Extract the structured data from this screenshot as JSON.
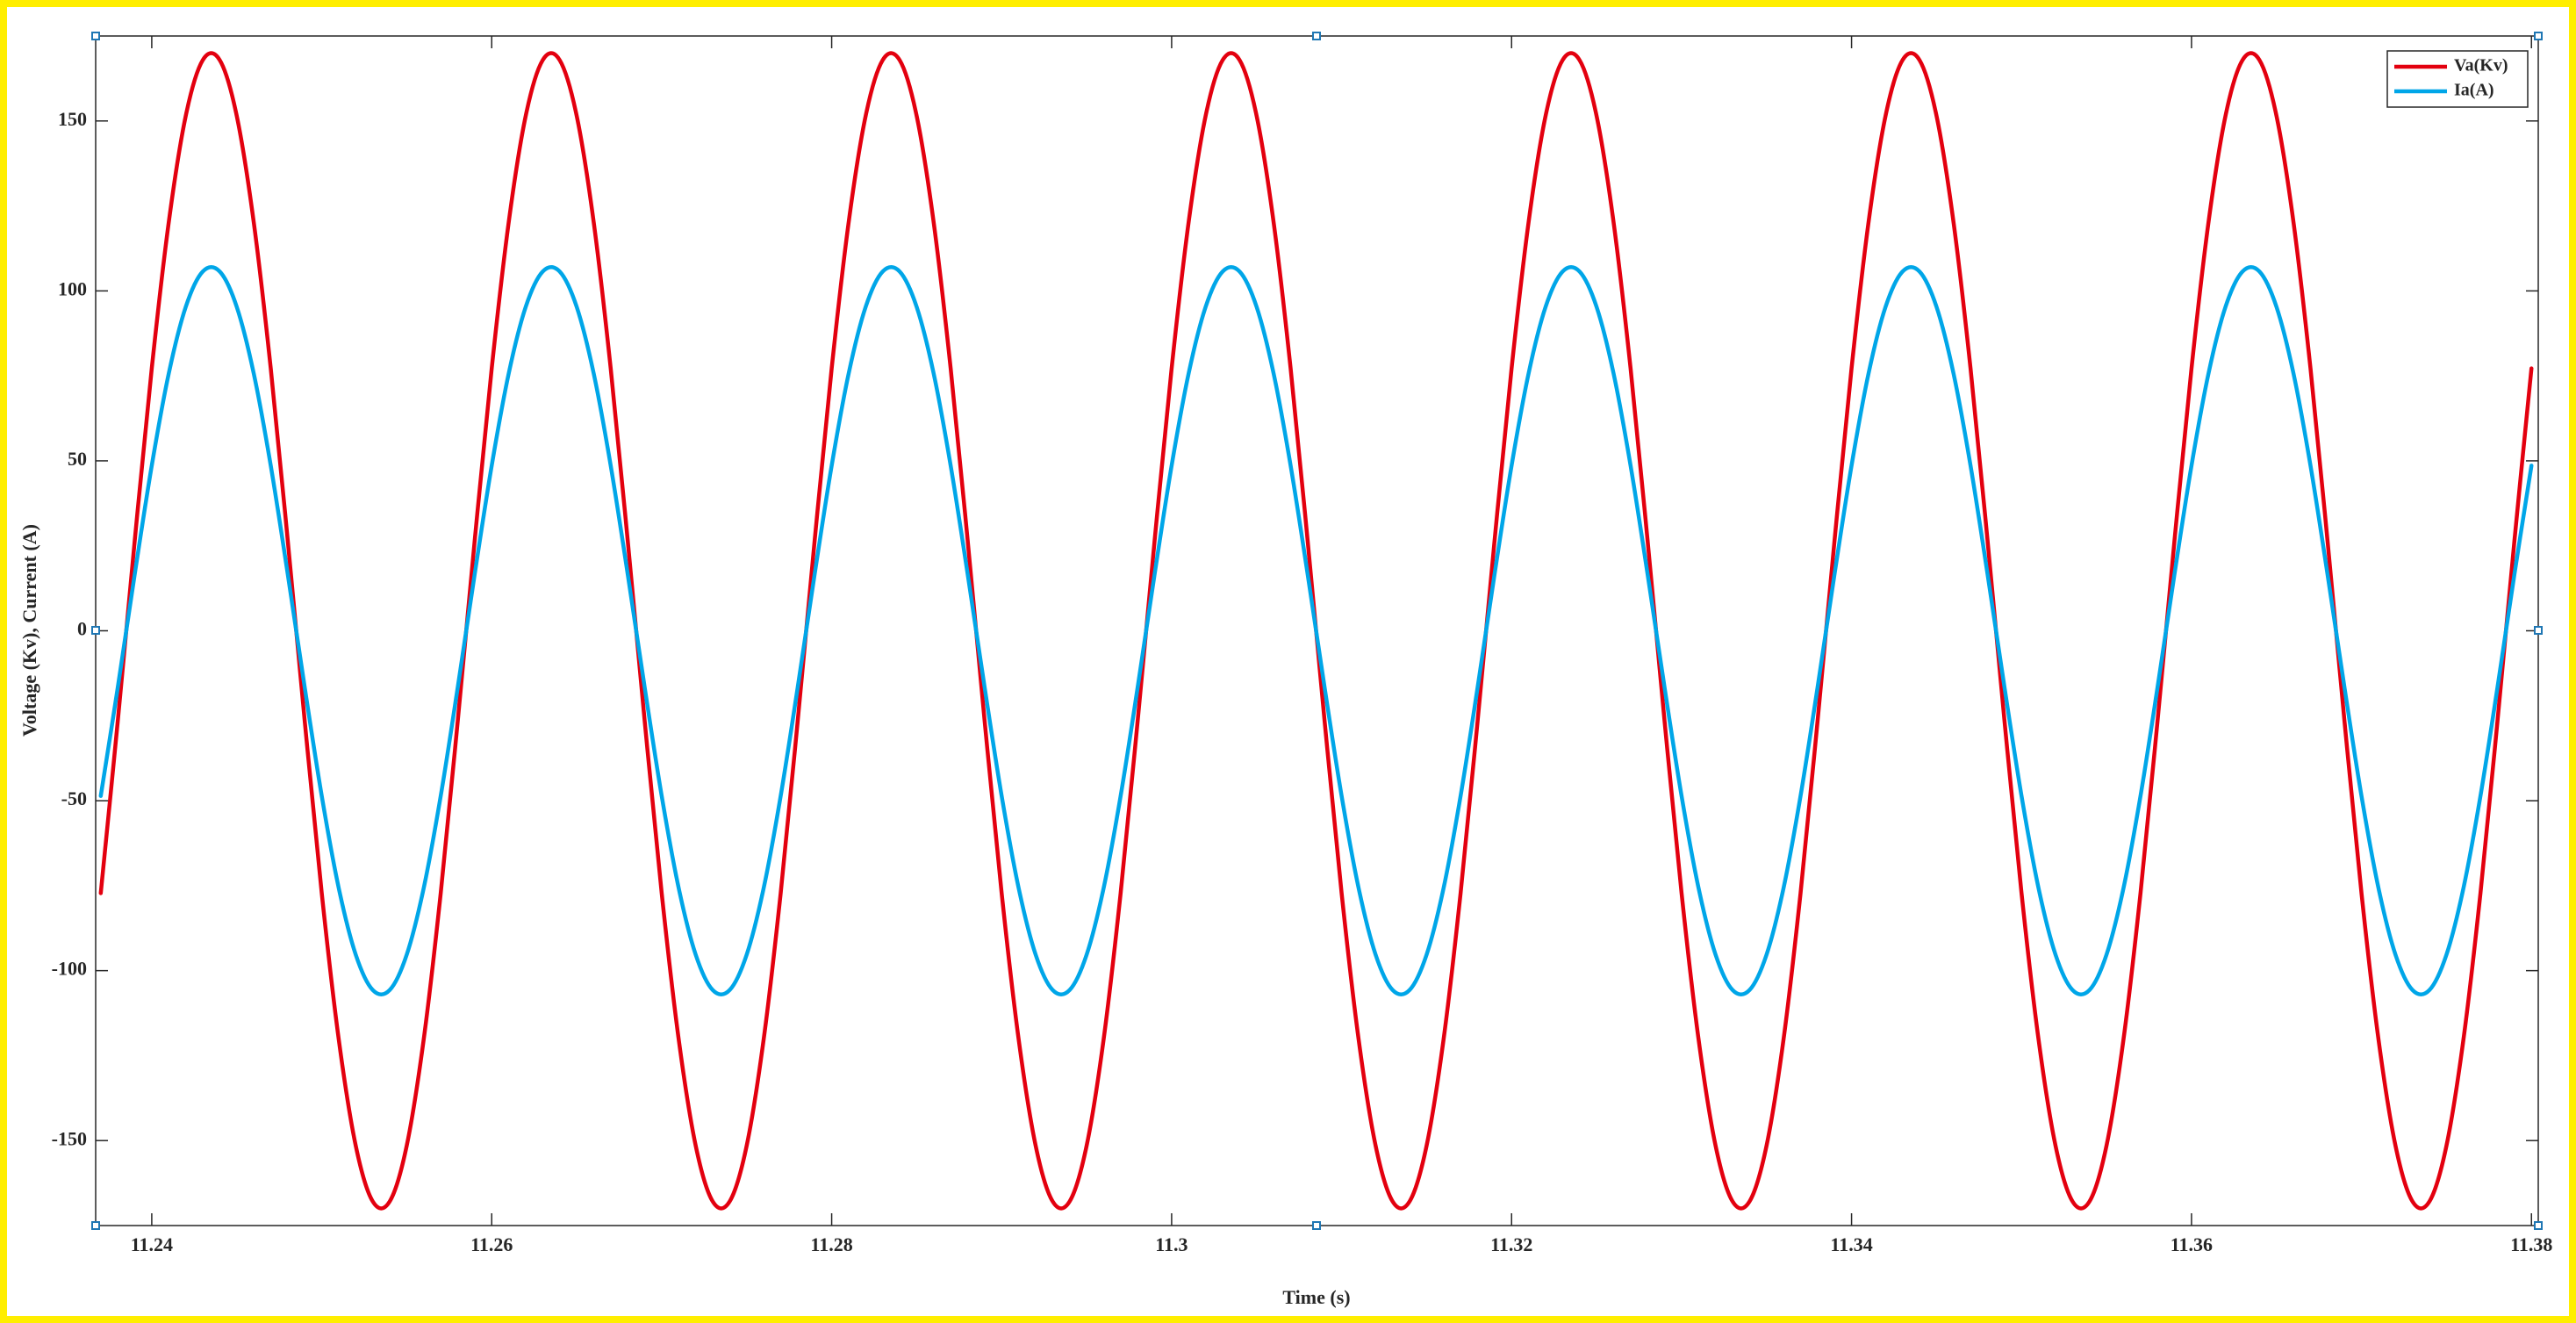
{
  "chart_data": {
    "type": "line",
    "xlabel": "Time (s)",
    "ylabel": "Voltage (Kv), Current (A)",
    "xlim": [
      11.2367,
      11.3804
    ],
    "ylim": [
      -175,
      175
    ],
    "xticks": [
      11.24,
      11.26,
      11.28,
      11.3,
      11.32,
      11.34,
      11.36,
      11.38
    ],
    "yticks": [
      -150,
      -100,
      -50,
      0,
      50,
      100,
      150
    ],
    "legend": "upper right",
    "x": [
      11.237,
      11.238,
      11.239,
      11.24,
      11.241,
      11.242,
      11.243,
      11.244,
      11.245,
      11.246,
      11.247,
      11.248,
      11.249,
      11.25,
      11.251,
      11.252,
      11.253,
      11.254,
      11.255,
      11.256,
      11.257,
      11.258,
      11.259,
      11.26,
      11.261,
      11.262,
      11.263,
      11.264,
      11.265,
      11.266,
      11.267,
      11.268,
      11.269,
      11.27,
      11.271,
      11.272,
      11.273,
      11.274,
      11.275,
      11.276,
      11.277,
      11.278,
      11.279,
      11.28,
      11.281,
      11.282,
      11.283,
      11.284,
      11.285,
      11.286,
      11.287,
      11.288,
      11.289,
      11.29,
      11.291,
      11.292,
      11.293,
      11.294,
      11.295,
      11.296,
      11.297,
      11.298,
      11.299,
      11.3,
      11.301,
      11.302,
      11.303,
      11.304,
      11.305,
      11.306,
      11.307,
      11.308,
      11.309,
      11.31,
      11.311,
      11.312,
      11.313,
      11.314,
      11.315,
      11.316,
      11.317,
      11.318,
      11.319,
      11.32,
      11.321,
      11.322,
      11.323,
      11.324,
      11.325,
      11.326,
      11.327,
      11.328,
      11.329,
      11.33,
      11.331,
      11.332,
      11.333,
      11.334,
      11.335,
      11.336,
      11.337,
      11.338,
      11.339,
      11.34,
      11.341,
      11.342,
      11.343,
      11.344,
      11.345,
      11.346,
      11.347,
      11.348,
      11.349,
      11.35,
      11.351,
      11.352,
      11.353,
      11.354,
      11.355,
      11.356,
      11.357,
      11.358,
      11.359,
      11.36,
      11.361,
      11.362,
      11.363,
      11.364,
      11.365,
      11.366,
      11.367,
      11.368,
      11.369,
      11.37,
      11.371,
      11.372,
      11.373,
      11.374,
      11.375,
      11.376,
      11.377,
      11.378,
      11.379,
      11.38
    ],
    "series": [
      {
        "name": "Va(Kv)",
        "color": "#e3000f",
        "values": [
          -77.2,
          -26.6,
          26.6,
          77.2,
          120.2,
          151.5,
          167.9,
          167.9,
          151.5,
          120.2,
          77.2,
          26.6,
          -26.6,
          -77.2,
          -120.2,
          -151.5,
          -167.9,
          -167.9,
          -151.5,
          -120.2,
          -77.2,
          -26.6,
          26.6,
          77.2,
          120.2,
          151.5,
          167.9,
          167.9,
          151.5,
          120.2,
          77.2,
          26.6,
          -26.6,
          -77.2,
          -120.2,
          -151.5,
          -167.9,
          -167.9,
          -151.5,
          -120.2,
          -77.2,
          -26.6,
          26.6,
          77.2,
          120.2,
          151.5,
          167.9,
          167.9,
          151.5,
          120.2,
          77.2,
          26.6,
          -26.6,
          -77.2,
          -120.2,
          -151.5,
          -167.9,
          -167.9,
          -151.5,
          -120.2,
          -77.2,
          -26.6,
          26.6,
          77.2,
          120.2,
          151.5,
          167.9,
          167.9,
          151.5,
          120.2,
          77.2,
          26.6,
          -26.6,
          -77.2,
          -120.2,
          -151.5,
          -167.9,
          -167.9,
          -151.5,
          -120.2,
          -77.2,
          -26.6,
          26.6,
          77.2,
          120.2,
          151.5,
          167.9,
          167.9,
          151.5,
          120.2,
          77.2,
          26.6,
          -26.6,
          -77.2,
          -120.2,
          -151.5,
          -167.9,
          -167.9,
          -151.5,
          -120.2,
          -77.2,
          -26.6,
          26.6,
          77.2,
          120.2,
          151.5,
          167.9,
          167.9,
          151.5,
          120.2,
          77.2,
          26.6,
          -26.6,
          -77.2,
          -120.2,
          -151.5,
          -167.9,
          -167.9,
          -151.5,
          -120.2,
          -77.2,
          -26.6,
          26.6,
          77.2,
          120.2,
          151.5,
          167.9,
          167.9,
          151.5,
          120.2,
          77.2,
          26.6,
          -26.6,
          -77.2,
          -120.2,
          -151.5,
          -167.9,
          -167.9,
          -151.5,
          -120.2,
          -77.2,
          -26.6,
          26.6,
          77.2
        ]
      },
      {
        "name": "Ia(A)",
        "color": "#00a6e8",
        "values": [
          -48.6,
          -16.7,
          16.7,
          48.6,
          75.7,
          95.3,
          105.7,
          105.7,
          95.3,
          75.7,
          48.6,
          16.7,
          -16.7,
          -48.6,
          -75.7,
          -95.3,
          -105.7,
          -105.7,
          -95.3,
          -75.7,
          -48.6,
          -16.7,
          16.7,
          48.6,
          75.7,
          95.3,
          105.7,
          105.7,
          95.3,
          75.7,
          48.6,
          16.7,
          -16.7,
          -48.6,
          -75.7,
          -95.3,
          -105.7,
          -105.7,
          -95.3,
          -75.7,
          -48.6,
          -16.7,
          16.7,
          48.6,
          75.7,
          95.3,
          105.7,
          105.7,
          95.3,
          75.7,
          48.6,
          16.7,
          -16.7,
          -48.6,
          -75.7,
          -95.3,
          -105.7,
          -105.7,
          -95.3,
          -75.7,
          -48.6,
          -16.7,
          16.7,
          48.6,
          75.7,
          95.3,
          105.7,
          105.7,
          95.3,
          75.7,
          48.6,
          16.7,
          -16.7,
          -48.6,
          -75.7,
          -95.3,
          -105.7,
          -105.7,
          -95.3,
          -75.7,
          -48.6,
          -16.7,
          16.7,
          48.6,
          75.7,
          95.3,
          105.7,
          105.7,
          95.3,
          75.7,
          48.6,
          16.7,
          -16.7,
          -48.6,
          -75.7,
          -95.3,
          -105.7,
          -105.7,
          -95.3,
          -75.7,
          -48.6,
          -16.7,
          16.7,
          48.6,
          75.7,
          95.3,
          105.7,
          105.7,
          95.3,
          75.7,
          48.6,
          16.7,
          -16.7,
          -48.6,
          -75.7,
          -95.3,
          -105.7,
          -105.7,
          -95.3,
          -75.7,
          -48.6,
          -16.7,
          16.7,
          48.6,
          75.7,
          95.3,
          105.7,
          105.7,
          95.3,
          75.7,
          48.6,
          16.7,
          -16.7,
          -48.6,
          -75.7,
          -95.3,
          -105.7,
          -105.7,
          -95.3,
          -75.7,
          -48.6,
          -16.7,
          16.7,
          48.6
        ]
      }
    ]
  }
}
